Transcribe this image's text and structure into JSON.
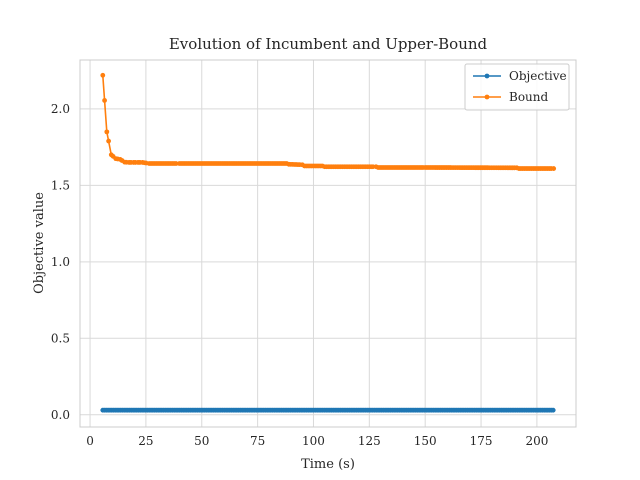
{
  "chart_data": {
    "type": "line",
    "title": "Evolution of Incumbent and Upper-Bound",
    "xlabel": "Time (s)",
    "ylabel": "Objective value",
    "xlim": [
      -4.5,
      217.5
    ],
    "ylim": [
      -0.08,
      2.32
    ],
    "xticks": [
      0,
      25,
      50,
      75,
      100,
      125,
      150,
      175,
      200
    ],
    "yticks": [
      0.0,
      0.5,
      1.0,
      1.5,
      2.0
    ],
    "xtick_labels": [
      "0",
      "25",
      "50",
      "75",
      "100",
      "125",
      "150",
      "175",
      "200"
    ],
    "ytick_labels": [
      "0.0",
      "0.5",
      "1.0",
      "1.5",
      "2.0"
    ],
    "grid": true,
    "legend_position": "top-right",
    "series": [
      {
        "name": "Objective",
        "color": "#1f77b4",
        "marker": "circle",
        "x_start": 5.7,
        "x_end": 207.5,
        "x_step": 0.8,
        "value": 0.03
      },
      {
        "name": "Bound",
        "color": "#ff7f0e",
        "marker": "circle",
        "points": [
          [
            5.7,
            2.22
          ],
          [
            7.5,
            1.85
          ],
          [
            9.5,
            1.7
          ],
          [
            11.5,
            1.675
          ],
          [
            13.5,
            1.67
          ],
          [
            15.5,
            1.652
          ],
          [
            17.5,
            1.65
          ],
          [
            19.5,
            1.65
          ],
          [
            21.5,
            1.65
          ],
          [
            23.5,
            1.65
          ],
          [
            26.5,
            1.643
          ],
          [
            40.0,
            1.643
          ],
          [
            60.0,
            1.643
          ],
          [
            88.0,
            1.643
          ],
          [
            89.0,
            1.638
          ],
          [
            95.0,
            1.635
          ],
          [
            96.0,
            1.627
          ],
          [
            104.0,
            1.627
          ],
          [
            105.0,
            1.622
          ],
          [
            128.0,
            1.622
          ],
          [
            129.0,
            1.617
          ],
          [
            150.0,
            1.617
          ],
          [
            191.0,
            1.615
          ],
          [
            192.0,
            1.61
          ],
          [
            207.5,
            1.61
          ]
        ],
        "x_step": 0.8
      }
    ]
  }
}
